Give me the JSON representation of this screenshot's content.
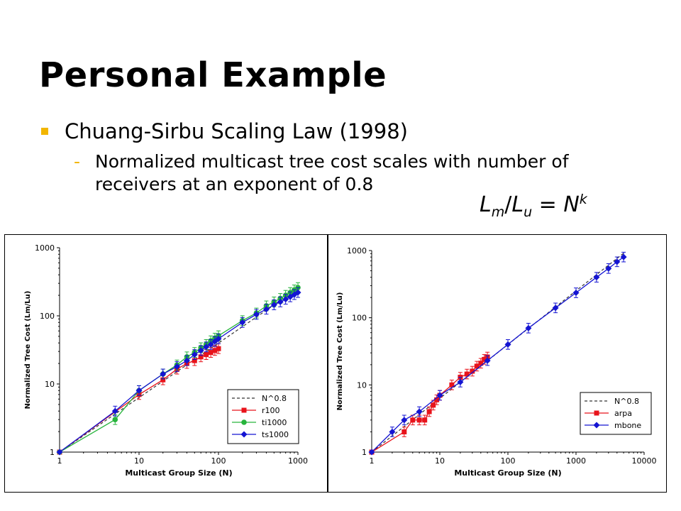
{
  "slide": {
    "title": "Personal Example",
    "bullet": "Chuang-Sirbu Scaling Law (1998)",
    "sub_bullet": "Normalized multicast tree cost scales with number of receivers at an exponent of 0.8",
    "formula": {
      "L": "L",
      "m": "m",
      "slash": "/",
      "L2": "L",
      "u": "u",
      "eq": " = ",
      "N": "N",
      "k": "k"
    }
  },
  "colors": {
    "accent": "#f2b600",
    "red": "#e8131b",
    "green": "#27b43c",
    "blue": "#1414d2",
    "fit": "#333333"
  },
  "chart_data": [
    {
      "type": "line",
      "xlabel": "Multicast Group Size (N)",
      "ylabel": "Normalized Tree Cost (Lm/Lu)",
      "x_scale": "log",
      "y_scale": "log",
      "xlim": [
        1,
        1000
      ],
      "ylim": [
        1,
        1000
      ],
      "x_ticks": [
        "1",
        "10",
        "100",
        "1000"
      ],
      "y_ticks": [
        "1",
        "10",
        "100",
        "1000"
      ],
      "legend_position": "bottom-right",
      "series": [
        {
          "name": "N^0.8",
          "style": "dashed",
          "x": [
            1,
            1000
          ],
          "y": [
            1,
            251
          ]
        },
        {
          "name": "r100",
          "color": "red",
          "marker": "square",
          "x": [
            1,
            10,
            20,
            30,
            40,
            50,
            60,
            70,
            80,
            90,
            100
          ],
          "y": [
            1,
            7,
            11.5,
            16.5,
            20,
            22,
            25,
            27,
            29,
            31,
            33
          ]
        },
        {
          "name": "ti1000",
          "color": "green",
          "marker": "circle",
          "x": [
            1,
            5,
            10,
            20,
            30,
            40,
            50,
            60,
            70,
            80,
            90,
            100,
            200,
            300,
            400,
            500,
            600,
            700,
            800,
            900,
            1000
          ],
          "y": [
            1,
            3,
            8,
            14,
            19,
            25,
            29,
            34,
            38,
            43,
            47,
            51,
            85,
            110,
            140,
            160,
            180,
            200,
            220,
            240,
            260
          ]
        },
        {
          "name": "ts1000",
          "color": "blue",
          "marker": "diamond",
          "x": [
            1,
            5,
            10,
            20,
            30,
            40,
            50,
            60,
            70,
            80,
            90,
            100,
            200,
            300,
            400,
            500,
            600,
            700,
            800,
            900,
            1000
          ],
          "y": [
            1,
            4,
            8,
            14,
            18,
            22,
            27,
            31,
            35,
            38,
            42,
            46,
            80,
            105,
            125,
            145,
            160,
            175,
            190,
            205,
            220
          ]
        }
      ]
    },
    {
      "type": "line",
      "xlabel": "Multicast Group Size (N)",
      "ylabel": "Normalized Tree Cost (Lm/Lu)",
      "x_scale": "log",
      "y_scale": "log",
      "xlim": [
        1,
        10000
      ],
      "ylim": [
        1,
        1000
      ],
      "x_ticks": [
        "1",
        "10",
        "100",
        "1000",
        "10000"
      ],
      "y_ticks": [
        "1",
        "10",
        "100",
        "1000"
      ],
      "legend_position": "bottom-right",
      "series": [
        {
          "name": "N^0.8",
          "style": "dashed",
          "x": [
            1,
            5000
          ],
          "y": [
            1,
            912
          ]
        },
        {
          "name": "arpa",
          "color": "red",
          "marker": "square",
          "x": [
            1,
            3,
            4,
            5,
            6,
            7,
            8,
            9,
            10,
            15,
            20,
            25,
            30,
            35,
            40,
            45,
            50
          ],
          "y": [
            1,
            2,
            3,
            3,
            3,
            4,
            5,
            6,
            7,
            10,
            13,
            14.5,
            16,
            19,
            21,
            24,
            26
          ]
        },
        {
          "name": "mbone",
          "color": "blue",
          "marker": "diamond",
          "x": [
            1,
            2,
            3,
            5,
            10,
            20,
            50,
            100,
            200,
            500,
            1000,
            2000,
            3000,
            4000,
            5000
          ],
          "y": [
            1,
            2,
            3,
            4,
            7,
            11,
            23,
            40,
            70,
            140,
            235,
            400,
            540,
            680,
            800
          ]
        }
      ]
    }
  ]
}
